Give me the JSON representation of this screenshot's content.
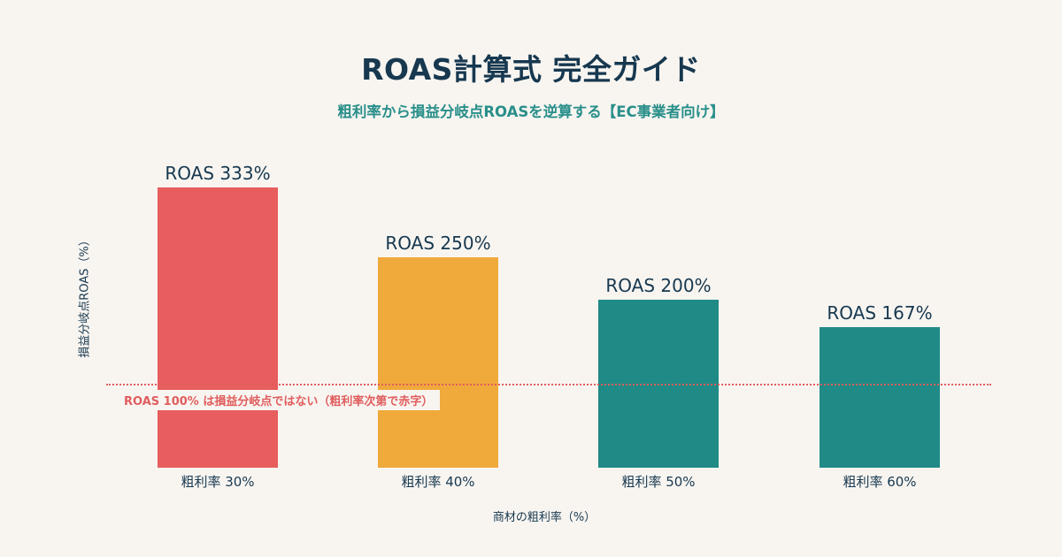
{
  "header": {
    "title": "ROAS計算式 完全ガイド",
    "subtitle": "粗利率から損益分岐点ROASを逆算する【EC事業者向け】"
  },
  "colors": {
    "background": "#f8f5f1",
    "title": "#17384f",
    "subtitle": "#2a8f8a",
    "bar_30": "#e85d5d",
    "bar_40": "#f0a93b",
    "bar_50": "#1f8a86",
    "bar_60": "#1f8a86",
    "reference_line": "#e05d5d"
  },
  "annotation": {
    "reference_note": "ROAS 100% は損益分岐点ではない（粗利率次第で赤字）"
  },
  "chart_data": {
    "type": "bar",
    "title": "ROAS計算式 完全ガイド",
    "subtitle": "粗利率から損益分岐点ROASを逆算する【EC事業者向け】",
    "xlabel": "商材の粗利率（%）",
    "ylabel": "損益分岐点ROAS（%）",
    "categories": [
      "粗利率 30%",
      "粗利率 40%",
      "粗利率 50%",
      "粗利率 60%"
    ],
    "values": [
      333,
      250,
      200,
      167
    ],
    "value_labels": [
      "ROAS 333%",
      "ROAS 250%",
      "ROAS 200%",
      "ROAS 167%"
    ],
    "bar_colors": [
      "#e85d5d",
      "#f0a93b",
      "#1f8a86",
      "#1f8a86"
    ],
    "reference_line": {
      "y": 100,
      "style": "dotted",
      "color": "#e05d5d",
      "label": "ROAS 100% は損益分岐点ではない（粗利率次第で赤字）"
    },
    "ylim": [
      0,
      350
    ],
    "grid": false,
    "legend": "none"
  }
}
